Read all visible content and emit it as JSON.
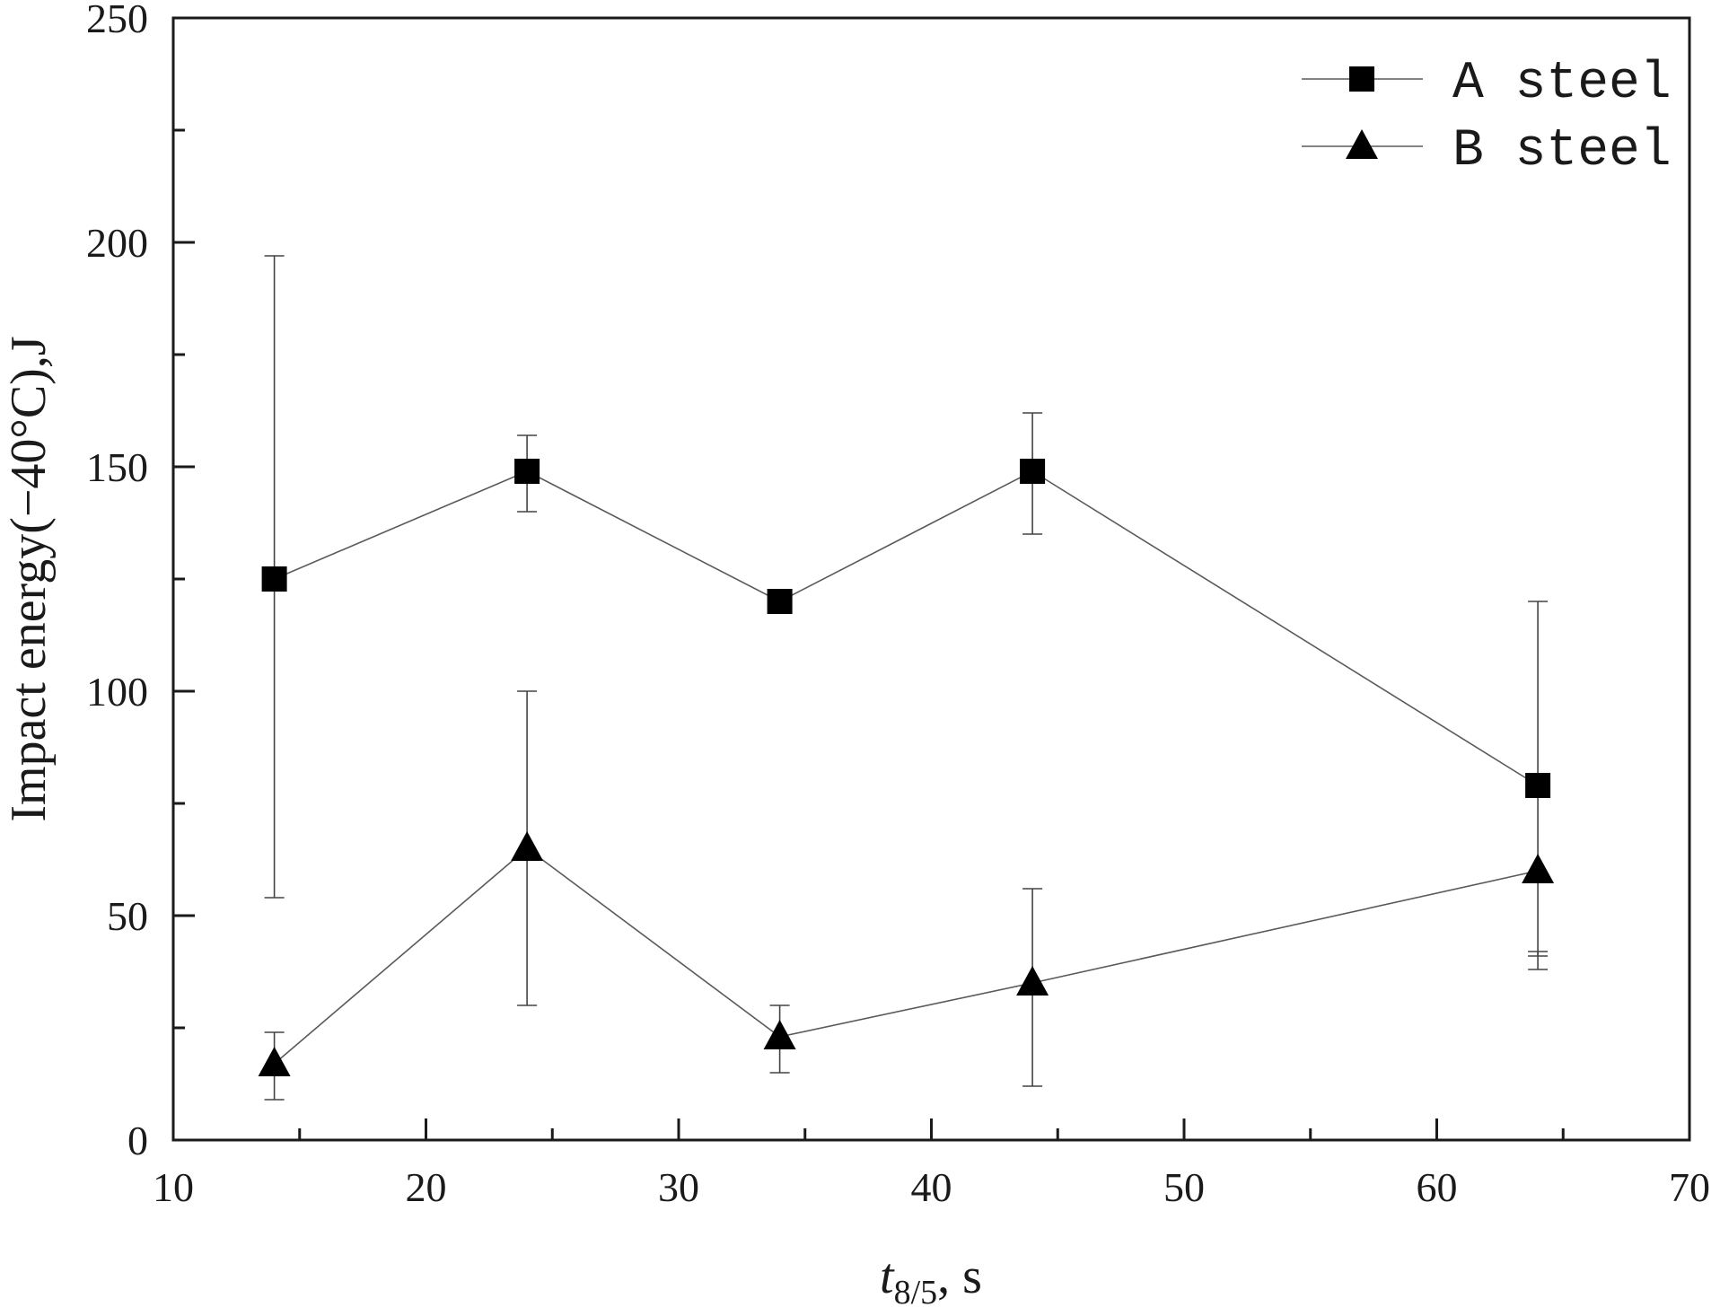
{
  "chart_data": {
    "type": "line",
    "xlabel": {
      "main": "t",
      "sub": "8/5",
      "suffix": ", s"
    },
    "ylabel": "Impact energy(−40°C),J",
    "xlim": [
      10,
      70
    ],
    "ylim": [
      0,
      250
    ],
    "x_ticks": [
      10,
      20,
      30,
      40,
      50,
      60,
      70
    ],
    "y_ticks": [
      0,
      50,
      100,
      150,
      200,
      250
    ],
    "grid": false,
    "legend_position": "top-right",
    "series": [
      {
        "name": "A steel",
        "marker": "square",
        "color": "#000000",
        "x": [
          14,
          24,
          34,
          44,
          64
        ],
        "y": [
          125,
          149,
          120,
          149,
          79
        ],
        "err_low": [
          54,
          140,
          120,
          135,
          38
        ],
        "err_high": [
          197,
          157,
          120,
          162,
          120
        ]
      },
      {
        "name": "B steel",
        "marker": "triangle",
        "color": "#000000",
        "x": [
          14,
          24,
          34,
          44,
          64
        ],
        "y": [
          17,
          65,
          23,
          35,
          60
        ],
        "err_low": [
          9,
          30,
          15,
          12,
          41
        ],
        "err_high": [
          24,
          100,
          30,
          56,
          42
        ]
      }
    ]
  }
}
